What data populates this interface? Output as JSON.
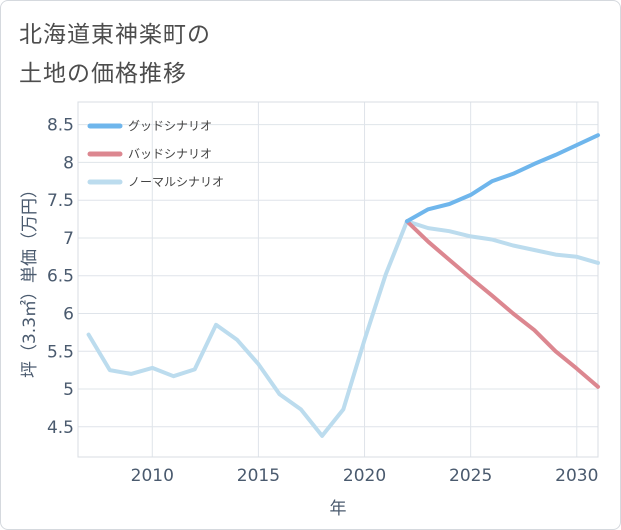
{
  "title_lines": [
    "北海道東神楽町の",
    "土地の価格推移"
  ],
  "chart_data": {
    "type": "line",
    "xlabel": "年",
    "ylabel": "坪（3.3㎡）単価（万円）",
    "xlim": [
      2006.5,
      2031
    ],
    "ylim": [
      4.1,
      8.8
    ],
    "xticks": [
      2010,
      2015,
      2020,
      2025,
      2030
    ],
    "yticks": [
      4.5,
      5,
      5.5,
      6,
      6.5,
      7,
      7.5,
      8,
      8.5
    ],
    "grid": true,
    "legend_position": "top-left",
    "series": [
      {
        "name": "グッドシナリオ",
        "color": "#6fb6ec",
        "x": [
          2022,
          2023,
          2024,
          2025,
          2026,
          2027,
          2028,
          2029,
          2030,
          2031
        ],
        "y": [
          7.22,
          7.38,
          7.45,
          7.57,
          7.75,
          7.85,
          7.98,
          8.1,
          8.23,
          8.36
        ]
      },
      {
        "name": "バッドシナリオ",
        "color": "#dc8790",
        "x": [
          2022,
          2023,
          2024,
          2025,
          2026,
          2027,
          2028,
          2029,
          2030,
          2031
        ],
        "y": [
          7.22,
          6.95,
          6.71,
          6.47,
          6.24,
          6.0,
          5.78,
          5.5,
          5.27,
          5.03
        ]
      },
      {
        "name": "ノーマルシナリオ",
        "color": "#bcdcee",
        "x": [
          2007,
          2008,
          2009,
          2010,
          2011,
          2012,
          2013,
          2014,
          2015,
          2016,
          2017,
          2018,
          2019,
          2020,
          2021,
          2022,
          2023,
          2024,
          2025,
          2026,
          2027,
          2028,
          2029,
          2030,
          2031
        ],
        "y": [
          5.72,
          5.25,
          5.2,
          5.28,
          5.17,
          5.26,
          5.85,
          5.65,
          5.33,
          4.93,
          4.73,
          4.38,
          4.73,
          5.65,
          6.52,
          7.22,
          7.13,
          7.09,
          7.02,
          6.98,
          6.9,
          6.84,
          6.78,
          6.75,
          6.67
        ]
      }
    ]
  }
}
